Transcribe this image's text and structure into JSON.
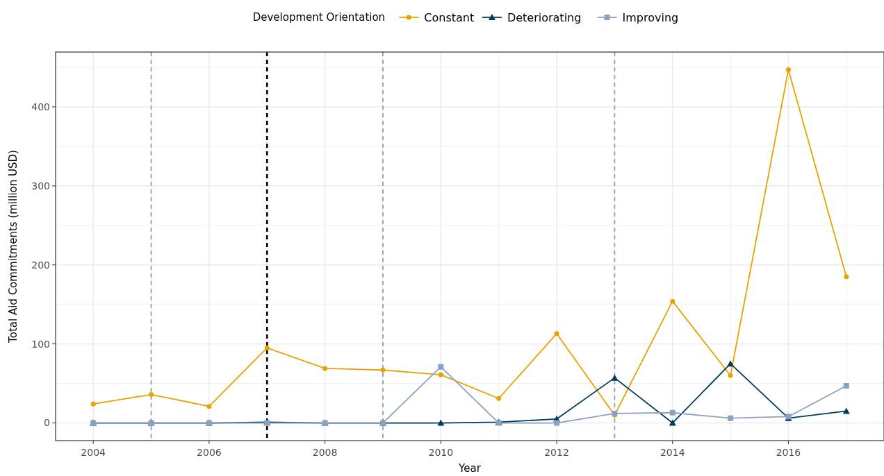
{
  "chart_data": {
    "type": "line",
    "xlabel": "Year",
    "ylabel": "Total Aid Commitments (million USD)",
    "legend_title": "Development Orientation",
    "x": [
      2004,
      2005,
      2006,
      2007,
      2008,
      2009,
      2010,
      2011,
      2012,
      2013,
      2014,
      2015,
      2016,
      2017
    ],
    "series": [
      {
        "name": "Constant",
        "color": "#e8a202",
        "marker": "circle",
        "values": [
          24,
          36,
          21,
          95,
          69,
          67,
          61,
          31,
          113,
          10,
          154,
          60,
          447,
          185
        ]
      },
      {
        "name": "Deteriorating",
        "color": "#003a5d",
        "marker": "triangle",
        "values": [
          0,
          0,
          0,
          1,
          0,
          0,
          0,
          1,
          5,
          57,
          0,
          75,
          6,
          15
        ]
      },
      {
        "name": "Improving",
        "color": "#8aa2bf",
        "marker": "square",
        "values": [
          0,
          0,
          0,
          0,
          0,
          0,
          71,
          0,
          0,
          12,
          13,
          6,
          8,
          47
        ]
      }
    ],
    "xlim": [
      2003.35,
      2017.65
    ],
    "ylim": [
      -22.35,
      469.35
    ],
    "xticks": [
      2004,
      2006,
      2008,
      2010,
      2012,
      2014,
      2016
    ],
    "yticks": [
      0,
      100,
      200,
      300,
      400
    ],
    "ref_lines": [
      {
        "axis": "x",
        "value": 2005,
        "color": "#8aa2bf",
        "line_style": "dashed"
      },
      {
        "axis": "x",
        "value": 2007,
        "color": "#000000",
        "line_style": "dashed"
      },
      {
        "axis": "x",
        "value": 2009,
        "color": "#8aa2bf",
        "line_style": "dashed"
      },
      {
        "axis": "x",
        "value": 2013,
        "color": "#8aa2bf",
        "line_style": "dashed"
      }
    ],
    "grid": true,
    "legend": "top",
    "line_style": "solid"
  }
}
